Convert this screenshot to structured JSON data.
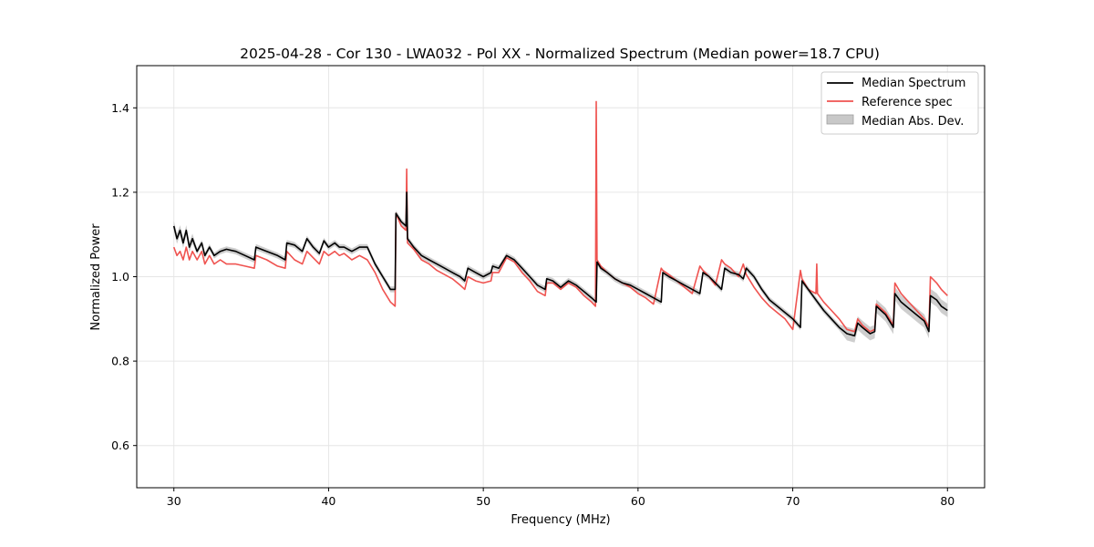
{
  "chart_data": {
    "type": "line",
    "title": "2025-04-28 - Cor 130 - LWA032 - Pol XX - Normalized Spectrum (Median power=18.7 CPU)",
    "xlabel": "Frequency (MHz)",
    "ylabel": "Normalized Power",
    "xlim": [
      27.6,
      82.4
    ],
    "ylim": [
      0.5,
      1.5
    ],
    "xticks": [
      30,
      40,
      50,
      60,
      70,
      80
    ],
    "yticks": [
      0.6,
      0.8,
      1.0,
      1.2,
      1.4
    ],
    "grid": true,
    "legend_position": "top-right",
    "legend": [
      "Median Spectrum",
      "Reference spec",
      "Median Abs. Dev."
    ],
    "colors": {
      "median": "#000000",
      "reference": "#ef5350",
      "mad_fill": "#bdbdbd",
      "grid": "#e6e6e6"
    },
    "series": [
      {
        "name": "Median Spectrum",
        "x": [
          30.0,
          30.2,
          30.4,
          30.6,
          30.8,
          31.0,
          31.2,
          31.5,
          31.8,
          32.0,
          32.3,
          32.6,
          33.0,
          33.4,
          34.0,
          34.6,
          35.2,
          35.3,
          36.0,
          36.7,
          37.2,
          37.3,
          37.8,
          38.3,
          38.6,
          39.0,
          39.4,
          39.7,
          40.0,
          40.4,
          40.7,
          41.0,
          41.5,
          42.0,
          42.5,
          43.0,
          43.5,
          44.0,
          44.3,
          44.35,
          44.7,
          45.0,
          45.05,
          45.1,
          45.5,
          46.0,
          46.5,
          47.0,
          47.5,
          48.0,
          48.5,
          48.8,
          49.0,
          49.5,
          50.0,
          50.5,
          50.6,
          51.0,
          51.5,
          52.0,
          52.5,
          53.0,
          53.5,
          54.0,
          54.1,
          54.5,
          55.0,
          55.5,
          56.0,
          56.5,
          57.0,
          57.3,
          57.35,
          57.6,
          58.0,
          58.5,
          59.0,
          59.5,
          60.0,
          60.5,
          61.0,
          61.5,
          61.6,
          62.0,
          62.5,
          63.0,
          63.5,
          64.0,
          64.2,
          64.6,
          65.0,
          65.4,
          65.6,
          66.0,
          66.5,
          66.8,
          67.0,
          67.5,
          68.0,
          68.5,
          69.0,
          69.5,
          70.0,
          70.5,
          70.6,
          71.0,
          71.5,
          72.0,
          72.5,
          73.0,
          73.5,
          74.0,
          74.2,
          74.5,
          75.0,
          75.3,
          75.4,
          76.0,
          76.5,
          76.6,
          77.0,
          77.5,
          78.0,
          78.5,
          78.8,
          78.9,
          79.3,
          79.6,
          80.0
        ],
        "values": [
          1.12,
          1.09,
          1.11,
          1.08,
          1.11,
          1.07,
          1.09,
          1.06,
          1.08,
          1.05,
          1.07,
          1.05,
          1.06,
          1.065,
          1.06,
          1.05,
          1.04,
          1.07,
          1.06,
          1.05,
          1.04,
          1.08,
          1.075,
          1.06,
          1.09,
          1.07,
          1.055,
          1.085,
          1.07,
          1.08,
          1.07,
          1.07,
          1.06,
          1.07,
          1.07,
          1.03,
          1.0,
          0.97,
          0.97,
          1.15,
          1.13,
          1.12,
          1.2,
          1.09,
          1.07,
          1.05,
          1.04,
          1.03,
          1.02,
          1.01,
          1.0,
          0.99,
          1.02,
          1.01,
          1.0,
          1.01,
          1.025,
          1.02,
          1.05,
          1.04,
          1.02,
          1.0,
          0.98,
          0.97,
          0.995,
          0.99,
          0.975,
          0.99,
          0.98,
          0.965,
          0.95,
          0.94,
          1.035,
          1.02,
          1.01,
          0.995,
          0.985,
          0.98,
          0.97,
          0.96,
          0.95,
          0.94,
          1.01,
          1.0,
          0.99,
          0.98,
          0.97,
          0.96,
          1.01,
          1.0,
          0.985,
          0.97,
          1.02,
          1.01,
          1.005,
          0.995,
          1.02,
          1.0,
          0.97,
          0.945,
          0.93,
          0.915,
          0.9,
          0.88,
          0.99,
          0.97,
          0.945,
          0.92,
          0.9,
          0.88,
          0.865,
          0.86,
          0.89,
          0.88,
          0.865,
          0.87,
          0.93,
          0.91,
          0.88,
          0.96,
          0.94,
          0.925,
          0.91,
          0.895,
          0.87,
          0.955,
          0.945,
          0.93,
          0.92
        ]
      },
      {
        "name": "Reference spec",
        "x": [
          30.0,
          30.2,
          30.4,
          30.6,
          30.8,
          31.0,
          31.2,
          31.5,
          31.8,
          32.0,
          32.3,
          32.6,
          33.0,
          33.4,
          34.0,
          34.6,
          35.2,
          35.3,
          36.0,
          36.7,
          37.2,
          37.3,
          37.8,
          38.3,
          38.6,
          39.0,
          39.4,
          39.7,
          40.0,
          40.4,
          40.7,
          41.0,
          41.5,
          42.0,
          42.5,
          43.0,
          43.5,
          44.0,
          44.3,
          44.35,
          44.7,
          45.0,
          45.05,
          45.1,
          45.5,
          46.0,
          46.5,
          47.0,
          47.5,
          48.0,
          48.5,
          48.8,
          49.0,
          49.5,
          50.0,
          50.5,
          50.6,
          51.0,
          51.5,
          52.0,
          52.5,
          53.0,
          53.5,
          54.0,
          54.1,
          54.5,
          55.0,
          55.5,
          56.0,
          56.5,
          57.0,
          57.25,
          57.3,
          57.35,
          57.6,
          58.0,
          58.5,
          59.0,
          59.5,
          60.0,
          60.5,
          61.0,
          61.5,
          61.6,
          62.0,
          62.5,
          63.0,
          63.5,
          64.0,
          64.2,
          64.6,
          65.0,
          65.4,
          65.6,
          66.0,
          66.5,
          66.8,
          67.0,
          67.5,
          68.0,
          68.5,
          69.0,
          69.5,
          70.0,
          70.5,
          70.6,
          71.0,
          71.5,
          71.55,
          71.6,
          72.0,
          72.5,
          73.0,
          73.5,
          74.0,
          74.2,
          74.5,
          75.0,
          75.3,
          75.4,
          76.0,
          76.5,
          76.6,
          77.0,
          77.5,
          78.0,
          78.5,
          78.8,
          78.9,
          79.3,
          79.6,
          80.0
        ],
        "values": [
          1.07,
          1.05,
          1.06,
          1.04,
          1.07,
          1.04,
          1.06,
          1.04,
          1.06,
          1.03,
          1.05,
          1.03,
          1.04,
          1.03,
          1.03,
          1.025,
          1.02,
          1.05,
          1.04,
          1.025,
          1.02,
          1.06,
          1.04,
          1.03,
          1.06,
          1.045,
          1.03,
          1.06,
          1.05,
          1.06,
          1.05,
          1.055,
          1.04,
          1.05,
          1.04,
          1.01,
          0.97,
          0.94,
          0.93,
          1.15,
          1.12,
          1.11,
          1.255,
          1.08,
          1.065,
          1.04,
          1.03,
          1.015,
          1.005,
          0.995,
          0.98,
          0.97,
          1.0,
          0.99,
          0.985,
          0.99,
          1.01,
          1.01,
          1.045,
          1.035,
          1.01,
          0.99,
          0.965,
          0.955,
          0.985,
          0.985,
          0.97,
          0.985,
          0.975,
          0.955,
          0.94,
          0.93,
          1.415,
          1.04,
          1.025,
          1.01,
          0.995,
          0.985,
          0.975,
          0.96,
          0.95,
          0.935,
          1.02,
          1.015,
          1.005,
          0.99,
          0.975,
          0.96,
          1.025,
          1.015,
          1.0,
          0.98,
          1.04,
          1.03,
          1.02,
          1.0,
          1.03,
          1.005,
          0.975,
          0.95,
          0.93,
          0.915,
          0.9,
          0.875,
          1.015,
          0.995,
          0.97,
          0.96,
          1.03,
          0.96,
          0.94,
          0.92,
          0.9,
          0.875,
          0.87,
          0.9,
          0.885,
          0.87,
          0.875,
          0.935,
          0.915,
          0.885,
          0.985,
          0.96,
          0.94,
          0.92,
          0.9,
          0.88,
          1.0,
          0.985,
          0.97,
          0.955
        ]
      }
    ]
  }
}
